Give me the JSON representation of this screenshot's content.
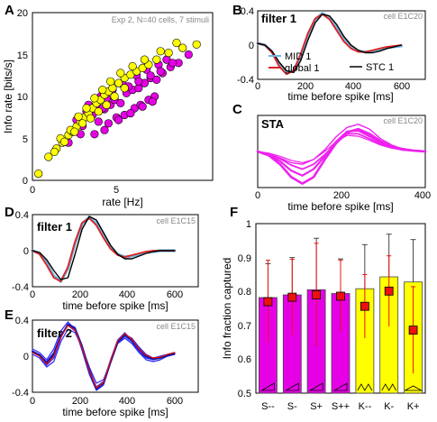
{
  "panel_labels": {
    "A": "A",
    "B": "B",
    "C": "C",
    "D": "D",
    "E": "E",
    "F": "F"
  },
  "colors": {
    "magenta": "#e600e6",
    "yellow": "#ffff00",
    "mid": "#6fb6e0",
    "global": "#e02020",
    "stc": "#000000",
    "sta": "#ee22ee",
    "navy": "#101080",
    "blue": "#2828ff",
    "red": "#ee1010",
    "note": "#888888"
  },
  "chart_data": [
    {
      "id": "A",
      "type": "scatter",
      "annotation": "Exp 2, N=40 cells, 7 stimuli",
      "xlabel": "rate [Hz]",
      "ylabel": "Info rate [bits/s]",
      "xlim": [
        0,
        9
      ],
      "ylim": [
        0,
        20
      ],
      "xticks": [
        "0",
        "5"
      ],
      "yticks": [
        "0",
        "5",
        "10",
        "15",
        "20"
      ],
      "series": [
        {
          "color": "magenta",
          "x": [
            2.5,
            3.0,
            3.3,
            3.6,
            3.9,
            4.1,
            4.4,
            4.7,
            5.0,
            5.3,
            5.6,
            5.9,
            6.2,
            6.5,
            6.9,
            7.3,
            7.8,
            3.8,
            4.2,
            4.6,
            5.1,
            5.4,
            5.8,
            6.1,
            2.8,
            3.4,
            4.0,
            4.5,
            5.2,
            5.7,
            6.3,
            6.7,
            3.1,
            3.6,
            4.3,
            4.9,
            5.5,
            6.0,
            2.2,
            2.7,
            3.2,
            3.7,
            4.8,
            5.3,
            5.9,
            6.4,
            7.0,
            1.8,
            2.4,
            3.5
          ],
          "y": [
            6.5,
            7.8,
            7.0,
            8.5,
            9.0,
            9.6,
            9.2,
            10.4,
            10.8,
            11.0,
            11.6,
            12.2,
            12.0,
            12.8,
            13.5,
            14.0,
            15.0,
            6.8,
            7.5,
            7.8,
            8.6,
            9.0,
            9.6,
            10.0,
            9.0,
            10.0,
            10.8,
            11.5,
            12.5,
            13.2,
            13.8,
            14.4,
            5.5,
            6.0,
            7.2,
            8.0,
            8.8,
            9.4,
            7.2,
            8.2,
            9.0,
            9.8,
            11.2,
            11.8,
            12.5,
            13.0,
            14.0,
            4.5,
            5.5,
            8.6
          ]
        },
        {
          "color": "yellow",
          "x": [
            0.3,
            0.8,
            1.2,
            1.5,
            1.8,
            2.0,
            2.2,
            2.4,
            2.6,
            2.8,
            3.0,
            3.2,
            3.4,
            3.6,
            3.8,
            4.0,
            4.3,
            4.6,
            4.9,
            5.2,
            5.5,
            5.8,
            6.2,
            6.8,
            7.5,
            8.2,
            1.4,
            1.9,
            2.3,
            2.7,
            3.1,
            3.5,
            3.9,
            4.4,
            5.0,
            5.6,
            6.4,
            7.2,
            2.1,
            2.5,
            2.9,
            3.3,
            3.7,
            4.1,
            4.6,
            1.1,
            1.6
          ],
          "y": [
            0.8,
            2.8,
            3.8,
            4.5,
            5.4,
            5.8,
            6.4,
            7.0,
            7.5,
            8.0,
            8.6,
            9.2,
            9.6,
            10.2,
            10.6,
            11.0,
            11.6,
            12.2,
            12.6,
            13.0,
            13.4,
            13.8,
            14.4,
            15.2,
            15.8,
            16.2,
            5.0,
            6.0,
            7.6,
            8.6,
            9.8,
            10.8,
            11.8,
            12.8,
            13.6,
            14.4,
            15.4,
            16.4,
            5.8,
            6.8,
            7.4,
            8.2,
            9.0,
            10.0,
            11.0,
            3.4,
            4.6
          ]
        }
      ]
    },
    {
      "id": "B",
      "type": "line",
      "title": "filter 1",
      "note": "cell E1C20",
      "xlabel": "time before spike [ms]",
      "xlim": [
        0,
        700
      ],
      "ylim": [
        -0.4,
        0.4
      ],
      "xticks": [
        "0",
        "200",
        "400",
        "600"
      ],
      "yticks": [
        "-0.4",
        "0",
        "0.4"
      ],
      "legend": {
        "mid": "MID 1",
        "global": "global 1",
        "stc": "STC 1"
      },
      "series": [
        {
          "name": "MID 1",
          "color": "mid",
          "y": [
            0.02,
            0.0,
            -0.08,
            -0.22,
            -0.32,
            -0.3,
            -0.12,
            0.12,
            0.3,
            0.37,
            0.32,
            0.2,
            0.06,
            -0.03,
            -0.07,
            -0.08,
            -0.07,
            -0.05,
            -0.03,
            -0.02,
            -0.01
          ]
        },
        {
          "name": "global 1",
          "color": "global",
          "y": [
            0.02,
            0.0,
            -0.09,
            -0.25,
            -0.34,
            -0.3,
            -0.1,
            0.14,
            0.31,
            0.36,
            0.3,
            0.17,
            0.04,
            -0.04,
            -0.08,
            -0.08,
            -0.06,
            -0.04,
            -0.02,
            -0.01,
            0.0
          ]
        },
        {
          "name": "STC 1",
          "color": "stc",
          "y": [
            0.02,
            0.0,
            -0.07,
            -0.2,
            -0.3,
            -0.32,
            -0.18,
            0.06,
            0.26,
            0.36,
            0.34,
            0.24,
            0.1,
            0.0,
            -0.06,
            -0.09,
            -0.09,
            -0.07,
            -0.04,
            -0.02,
            0.0
          ]
        }
      ]
    },
    {
      "id": "C",
      "type": "line",
      "title": "STA",
      "note": "cell E1C20",
      "xlabel": "time before spike [ms]",
      "xlim": [
        0,
        400
      ],
      "xticks": [
        "0",
        "200",
        "400"
      ],
      "series": [
        {
          "color": "sta",
          "y": [
            0.0,
            -0.02,
            -0.06,
            -0.11,
            -0.14,
            -0.1,
            0.0,
            0.12,
            0.2,
            0.19,
            0.14,
            0.08,
            0.04,
            0.02,
            0.01,
            0.0
          ]
        },
        {
          "color": "sta",
          "y": [
            0.0,
            -0.03,
            -0.09,
            -0.17,
            -0.22,
            -0.16,
            -0.04,
            0.1,
            0.22,
            0.22,
            0.16,
            0.09,
            0.05,
            0.02,
            0.01,
            0.0
          ]
        },
        {
          "color": "sta",
          "y": [
            0.0,
            -0.04,
            -0.12,
            -0.24,
            -0.3,
            -0.22,
            -0.06,
            0.12,
            0.25,
            0.26,
            0.19,
            0.11,
            0.05,
            0.02,
            0.01,
            0.0
          ]
        },
        {
          "color": "sta",
          "y": [
            0.0,
            -0.05,
            -0.16,
            -0.32,
            -0.4,
            -0.32,
            -0.1,
            0.1,
            0.24,
            0.28,
            0.22,
            0.13,
            0.06,
            0.03,
            0.01,
            0.0
          ]
        },
        {
          "color": "sta",
          "y": [
            0.0,
            -0.03,
            -0.08,
            -0.14,
            -0.16,
            -0.1,
            0.02,
            0.18,
            0.3,
            0.34,
            0.28,
            0.16,
            0.08,
            0.03,
            0.01,
            0.0
          ]
        }
      ]
    },
    {
      "id": "D",
      "type": "line",
      "title": "filter 1",
      "note": "cell E1C15",
      "xlabel": "time before spike [ms]",
      "xlim": [
        0,
        700
      ],
      "ylim": [
        -0.4,
        0.4
      ],
      "xticks": [
        "0",
        "200",
        "400",
        "600"
      ],
      "yticks": [
        "-0.4",
        "0",
        "0.4"
      ],
      "series": [
        {
          "color": "mid",
          "y": [
            0.0,
            -0.03,
            -0.14,
            -0.28,
            -0.34,
            -0.2,
            0.08,
            0.3,
            0.37,
            0.3,
            0.16,
            0.04,
            -0.04,
            -0.07,
            -0.06,
            -0.04,
            -0.02,
            -0.01,
            0.0,
            0.0,
            0.0
          ]
        },
        {
          "color": "global",
          "y": [
            0.0,
            -0.04,
            -0.16,
            -0.3,
            -0.34,
            -0.18,
            0.1,
            0.31,
            0.36,
            0.28,
            0.14,
            0.02,
            -0.05,
            -0.07,
            -0.05,
            -0.03,
            -0.01,
            0.0,
            0.0,
            0.0,
            0.0
          ]
        },
        {
          "color": "stc",
          "y": [
            0.0,
            -0.02,
            -0.1,
            -0.22,
            -0.32,
            -0.3,
            -0.04,
            0.24,
            0.38,
            0.34,
            0.2,
            0.06,
            -0.04,
            -0.09,
            -0.09,
            -0.06,
            -0.03,
            -0.01,
            0.0,
            0.0,
            0.0
          ]
        }
      ]
    },
    {
      "id": "E",
      "type": "line",
      "title": "filter 2",
      "note": "cell E1C15",
      "xlabel": "time before spike [ms]",
      "xlim": [
        0,
        700
      ],
      "ylim": [
        -0.4,
        0.4
      ],
      "xticks": [
        "0",
        "200",
        "400",
        "600"
      ],
      "yticks": [
        "-0.4",
        "0",
        "0.4"
      ],
      "series": [
        {
          "color": "blue",
          "y": [
            0.06,
            0.02,
            -0.06,
            0.04,
            0.24,
            0.34,
            0.28,
            0.08,
            -0.18,
            -0.34,
            -0.28,
            -0.04,
            0.18,
            0.26,
            0.18,
            0.06,
            -0.02,
            -0.04,
            -0.02,
            0.0,
            0.02
          ]
        },
        {
          "color": "blue",
          "y": [
            0.04,
            0.0,
            -0.1,
            -0.02,
            0.2,
            0.36,
            0.32,
            0.12,
            -0.14,
            -0.36,
            -0.3,
            -0.06,
            0.16,
            0.24,
            0.2,
            0.1,
            0.02,
            -0.02,
            -0.02,
            0.02,
            0.04
          ]
        },
        {
          "color": "blue",
          "y": [
            0.08,
            0.04,
            -0.04,
            0.08,
            0.28,
            0.38,
            0.3,
            0.06,
            -0.2,
            -0.38,
            -0.32,
            -0.08,
            0.14,
            0.22,
            0.16,
            0.04,
            -0.04,
            -0.06,
            -0.04,
            0.0,
            0.02
          ]
        },
        {
          "color": "blue",
          "y": [
            0.02,
            -0.02,
            -0.12,
            -0.06,
            0.16,
            0.3,
            0.26,
            0.1,
            -0.12,
            -0.3,
            -0.26,
            -0.06,
            0.14,
            0.2,
            0.14,
            0.04,
            -0.02,
            -0.02,
            0.0,
            0.02,
            0.04
          ]
        },
        {
          "color": "navy",
          "y": [
            0.05,
            0.01,
            -0.08,
            0.02,
            0.22,
            0.35,
            0.3,
            0.1,
            -0.16,
            -0.36,
            -0.3,
            -0.06,
            0.16,
            0.24,
            0.18,
            0.08,
            0.0,
            -0.03,
            -0.02,
            0.01,
            0.03
          ]
        },
        {
          "color": "red",
          "y": [
            0.04,
            0.0,
            -0.09,
            0.0,
            0.21,
            0.34,
            0.29,
            0.09,
            -0.16,
            -0.35,
            -0.29,
            -0.05,
            0.17,
            0.25,
            0.19,
            0.08,
            0.01,
            -0.02,
            -0.01,
            0.02,
            0.04
          ]
        }
      ]
    },
    {
      "id": "F",
      "type": "bar",
      "ylabel": "Info fraction captured",
      "ylim": [
        0.5,
        1.0
      ],
      "yticks": [
        "0.5",
        "0.6",
        "0.7",
        "0.8",
        "0.9",
        "1"
      ],
      "categories": [
        "S--",
        "S-",
        "S+",
        "S++",
        "K--",
        "K-",
        "K+"
      ],
      "bar_colors": [
        "magenta",
        "magenta",
        "magenta",
        "magenta",
        "yellow",
        "yellow",
        "yellow"
      ],
      "values": [
        0.782,
        0.79,
        0.805,
        0.794,
        0.808,
        0.843,
        0.828
      ],
      "black_err": [
        0.1,
        0.11,
        0.152,
        0.102,
        0.13,
        0.126,
        0.125
      ],
      "markers": [
        0.77,
        0.783,
        0.79,
        0.786,
        0.756,
        0.801,
        0.686
      ],
      "red_err": [
        0.122,
        0.112,
        0.152,
        0.106,
        0.094,
        0.104,
        0.128
      ]
    }
  ]
}
